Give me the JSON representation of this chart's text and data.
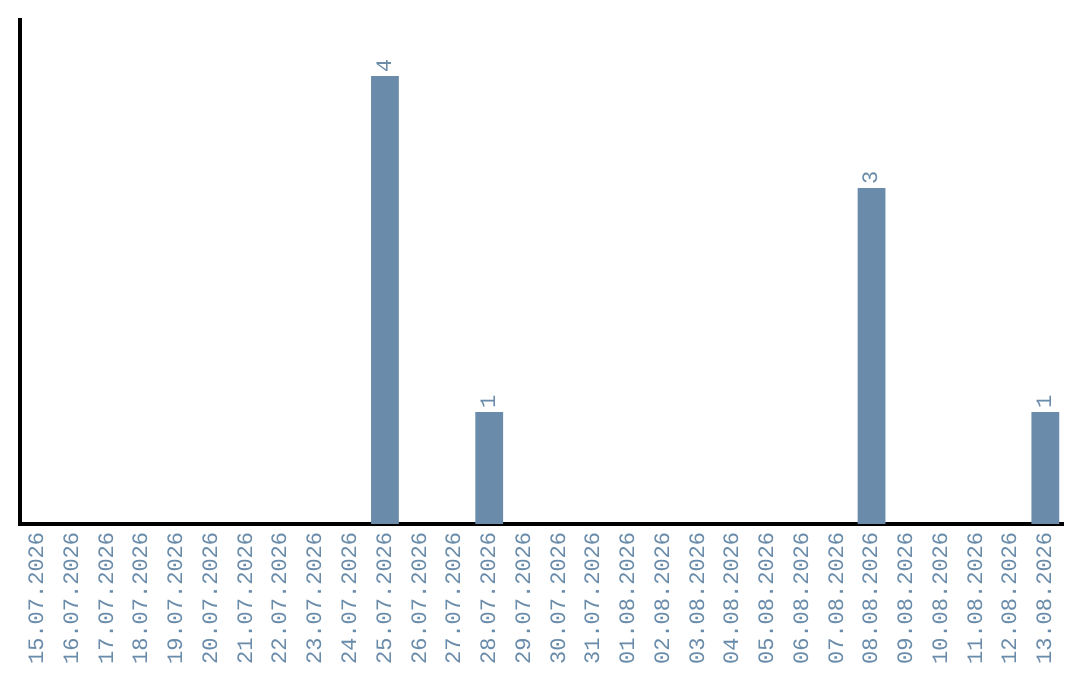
{
  "chart_data": {
    "type": "bar",
    "categories": [
      "15.07.2026",
      "16.07.2026",
      "17.07.2026",
      "18.07.2026",
      "19.07.2026",
      "20.07.2026",
      "21.07.2026",
      "22.07.2026",
      "23.07.2026",
      "24.07.2026",
      "25.07.2026",
      "26.07.2026",
      "27.07.2026",
      "28.07.2026",
      "29.07.2026",
      "30.07.2026",
      "31.07.2026",
      "01.08.2026",
      "02.08.2026",
      "03.08.2026",
      "04.08.2026",
      "05.08.2026",
      "06.08.2026",
      "07.08.2026",
      "08.08.2026",
      "09.08.2026",
      "10.08.2026",
      "11.08.2026",
      "12.08.2026",
      "13.08.2026"
    ],
    "values": [
      0,
      0,
      0,
      0,
      0,
      0,
      0,
      0,
      0,
      0,
      4,
      0,
      0,
      1,
      0,
      0,
      0,
      0,
      0,
      0,
      0,
      0,
      0,
      0,
      3,
      0,
      0,
      0,
      0,
      1
    ],
    "value_labels": [
      null,
      null,
      null,
      null,
      null,
      null,
      null,
      null,
      null,
      null,
      "4",
      null,
      null,
      "1",
      null,
      null,
      null,
      null,
      null,
      null,
      null,
      null,
      null,
      null,
      "3",
      null,
      null,
      null,
      null,
      "1"
    ],
    "color": "#6a8caa",
    "grid": false,
    "legend": false,
    "tick_labels": "x"
  }
}
